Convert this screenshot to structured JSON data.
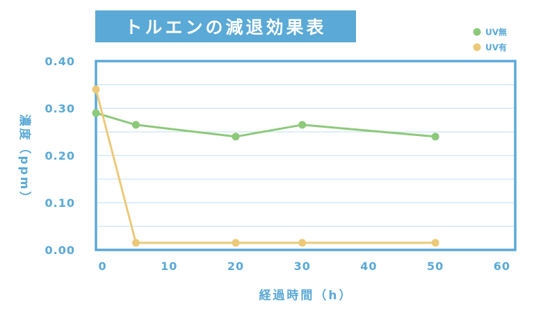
{
  "chart_data": {
    "type": "line",
    "title": "トルエンの減退効果表",
    "xlabel": "経過時間（h）",
    "ylabel": "濃度（ppm）",
    "xlim": [
      -1,
      62
    ],
    "ylim": [
      0,
      0.4
    ],
    "x_ticks": [
      "0",
      "10",
      "20",
      "30",
      "40",
      "50",
      "60"
    ],
    "y_ticks": [
      "0.00",
      "0.10",
      "0.20",
      "0.30",
      "0.40"
    ],
    "grid": true,
    "legend_position": "top-right",
    "series": [
      {
        "name": "UV無",
        "color": "#8cc97a",
        "x": [
          -1,
          5,
          20,
          30,
          50
        ],
        "values": [
          0.29,
          0.265,
          0.24,
          0.265,
          0.24
        ]
      },
      {
        "name": "UV有",
        "color": "#ecc978",
        "x": [
          -1,
          5,
          20,
          30,
          50
        ],
        "values": [
          0.34,
          0.015,
          0.015,
          0.015,
          0.015
        ]
      }
    ],
    "colors": {
      "axis": "#5aa9d6",
      "grid": "#bcdcef"
    }
  }
}
